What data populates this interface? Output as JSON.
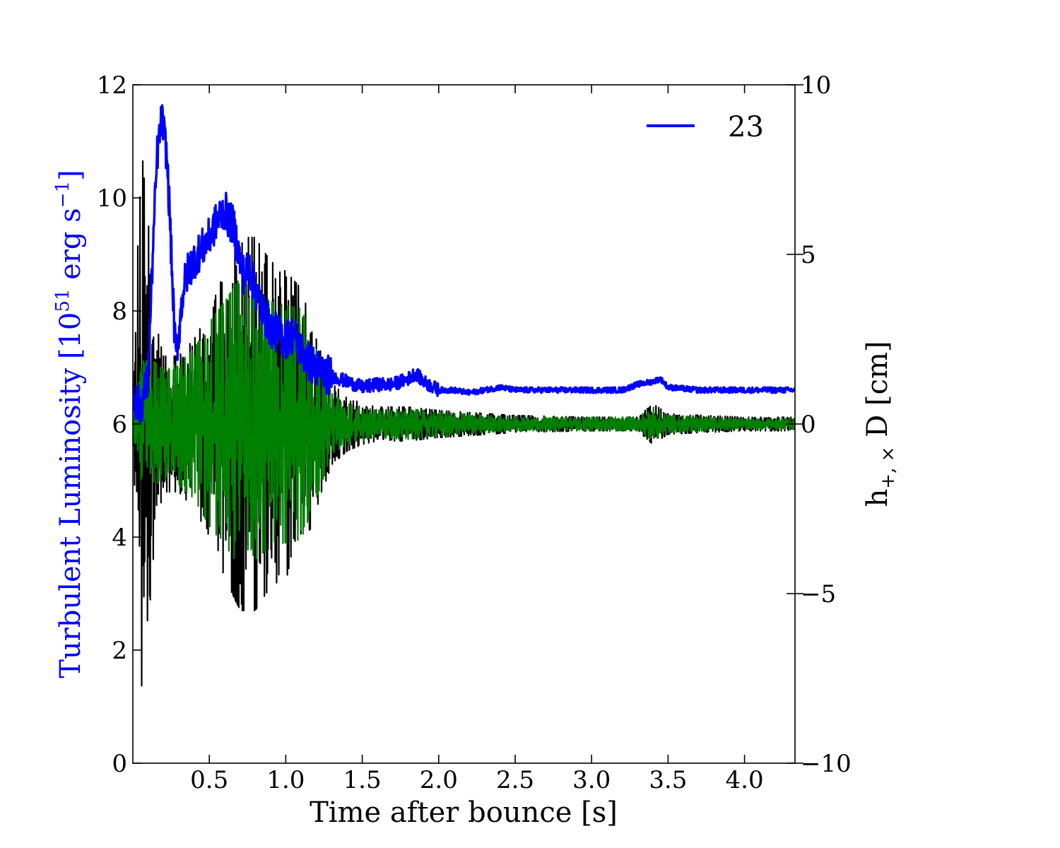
{
  "chart_data": {
    "type": "line",
    "xlabel": "Time after bounce [s]",
    "ylabel_left": "Turbulent Luminosity [10",
    "ylabel_left_sup": "51",
    "ylabel_left_mid": " erg s",
    "ylabel_left_sup2": "−1",
    "ylabel_left_end": "]",
    "ylabel_right": "h",
    "ylabel_right_sub": "+, ×",
    "ylabel_right_end": " D [cm]",
    "xlim": [
      0.0,
      4.33
    ],
    "ylim_left": [
      0,
      12
    ],
    "ylim_right": [
      -10,
      10
    ],
    "xticks": [
      0.5,
      1.0,
      1.5,
      2.0,
      2.5,
      3.0,
      3.5,
      4.0
    ],
    "xtick_labels": [
      "0.5",
      "1.0",
      "1.5",
      "2.0",
      "2.5",
      "3.0",
      "3.5",
      "4.0"
    ],
    "yticks_left": [
      0,
      2,
      4,
      6,
      8,
      10,
      12
    ],
    "ytick_labels_left": [
      "0",
      "2",
      "4",
      "6",
      "8",
      "10",
      "12"
    ],
    "yticks_right": [
      -10,
      -5,
      0,
      5,
      10
    ],
    "ytick_labels_right": [
      "−10",
      "−5",
      "0",
      "5",
      "10"
    ],
    "legend": {
      "position": "top-right",
      "entries": [
        {
          "label": "23",
          "color": "#0000ff"
        }
      ]
    },
    "colors": {
      "luminosity": "#0000ff",
      "h_plus": "#000000",
      "h_cross": "#008000",
      "left_axis_label": "#0000ff"
    },
    "series": [
      {
        "name": "23",
        "axis": "left",
        "color": "#0000ff",
        "x": [
          0.0,
          0.05,
          0.1,
          0.13,
          0.16,
          0.19,
          0.2,
          0.22,
          0.24,
          0.26,
          0.28,
          0.3,
          0.33,
          0.36,
          0.4,
          0.45,
          0.5,
          0.55,
          0.6,
          0.63,
          0.66,
          0.7,
          0.73,
          0.76,
          0.8,
          0.85,
          0.9,
          0.95,
          1.0,
          1.05,
          1.1,
          1.15,
          1.2,
          1.25,
          1.3,
          1.35,
          1.4,
          1.45,
          1.5,
          1.6,
          1.7,
          1.8,
          1.85,
          1.9,
          2.0,
          2.1,
          2.2,
          2.3,
          2.4,
          2.5,
          2.6,
          2.8,
          3.0,
          3.2,
          3.3,
          3.4,
          3.45,
          3.5,
          3.7,
          3.9,
          4.1,
          4.33
        ],
        "y": [
          6.5,
          6.3,
          6.8,
          9.0,
          10.8,
          11.4,
          11.2,
          10.8,
          9.8,
          8.4,
          7.2,
          7.6,
          8.4,
          8.7,
          8.9,
          9.1,
          9.3,
          9.6,
          9.8,
          9.6,
          9.5,
          8.9,
          8.6,
          8.8,
          8.4,
          8.0,
          7.7,
          7.6,
          7.5,
          7.6,
          7.3,
          7.1,
          7.0,
          6.9,
          6.85,
          6.8,
          6.75,
          6.7,
          6.65,
          6.7,
          6.7,
          6.8,
          6.9,
          6.75,
          6.6,
          6.6,
          6.55,
          6.6,
          6.65,
          6.6,
          6.6,
          6.6,
          6.6,
          6.6,
          6.7,
          6.75,
          6.8,
          6.65,
          6.6,
          6.6,
          6.6,
          6.6
        ]
      },
      {
        "name": "",
        "axis": "right",
        "color": "#000000",
        "amplitude_envelope": {
          "t": [
            0.0,
            0.03,
            0.06,
            0.1,
            0.15,
            0.2,
            0.3,
            0.4,
            0.5,
            0.6,
            0.7,
            0.8,
            0.9,
            1.0,
            1.1,
            1.2,
            1.3,
            1.4,
            1.5,
            1.6,
            1.8,
            2.0,
            2.5,
            3.0,
            3.3,
            3.4,
            3.5,
            4.0,
            4.33
          ],
          "a": [
            0.5,
            5.0,
            8.0,
            6.0,
            3.0,
            2.0,
            2.0,
            2.5,
            3.3,
            4.5,
            5.5,
            5.5,
            4.8,
            4.5,
            4.0,
            2.5,
            1.2,
            0.8,
            0.6,
            0.5,
            0.5,
            0.4,
            0.25,
            0.2,
            0.2,
            0.6,
            0.3,
            0.2,
            0.2
          ]
        }
      },
      {
        "name": "",
        "axis": "right",
        "color": "#008000",
        "amplitude_envelope": {
          "t": [
            0.0,
            0.03,
            0.06,
            0.1,
            0.15,
            0.2,
            0.3,
            0.4,
            0.5,
            0.6,
            0.7,
            0.8,
            0.9,
            1.0,
            1.1,
            1.2,
            1.3,
            1.4,
            1.5,
            1.6,
            1.8,
            2.0,
            2.5,
            3.0,
            3.3,
            3.4,
            3.5,
            4.0,
            4.33
          ],
          "a": [
            0.3,
            1.0,
            1.8,
            2.0,
            1.8,
            1.6,
            1.8,
            2.2,
            3.0,
            3.6,
            4.3,
            4.0,
            3.6,
            3.5,
            3.4,
            2.2,
            0.9,
            0.6,
            0.5,
            0.4,
            0.45,
            0.35,
            0.2,
            0.2,
            0.2,
            0.5,
            0.25,
            0.15,
            0.15
          ]
        }
      }
    ]
  }
}
